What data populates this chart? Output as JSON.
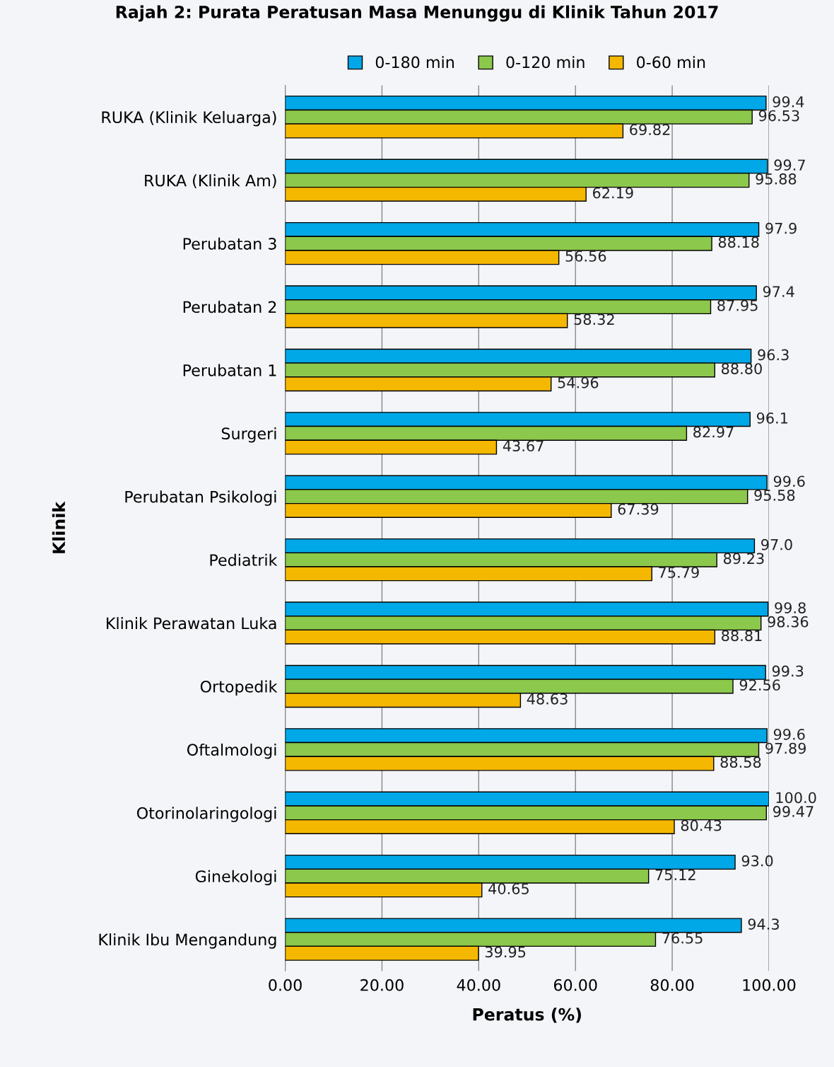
{
  "chart_data": {
    "type": "bar",
    "orientation": "horizontal",
    "title": "Rajah 2: Purata Peratusan Masa Menunggu di Klinik Tahun 2017",
    "xlabel": "Peratus (%)",
    "ylabel": "Klinik",
    "categories": [
      "RUKA (Klinik Keluarga)",
      "RUKA (Klinik Am)",
      "Perubatan 3",
      "Perubatan 2",
      "Perubatan 1",
      "Surgeri",
      "Perubatan Psikologi",
      "Pediatrik",
      "Klinik Perawatan Luka",
      "Ortopedik",
      "Oftalmologi",
      "Otorinolaringologi",
      "Ginekologi",
      "Klinik Ibu Mengandung"
    ],
    "series": [
      {
        "name": "0-180 min",
        "color": "#00a8e8",
        "values": [
          99.4,
          99.7,
          97.9,
          97.4,
          96.3,
          96.1,
          99.6,
          97.0,
          99.8,
          99.3,
          99.6,
          100.0,
          93.0,
          94.3
        ],
        "value_labels": [
          "99.4",
          "99.7",
          "97.9",
          "97.4",
          "96.3",
          "96.1",
          "99.6",
          "97.0",
          "99.8",
          "99.3",
          "99.6",
          "100.0",
          "93.0",
          "94.3"
        ]
      },
      {
        "name": "0-120 min",
        "color": "#8cc84b",
        "values": [
          96.53,
          95.88,
          88.18,
          87.95,
          88.8,
          82.97,
          95.58,
          89.23,
          98.36,
          92.56,
          97.89,
          99.47,
          75.12,
          76.55
        ],
        "value_labels": [
          "96.53",
          "95.88",
          "88.18",
          "87.95",
          "88.80",
          "82.97",
          "95.58",
          "89.23",
          "98.36",
          "92.56",
          "97.89",
          "99.47",
          "75.12",
          "76.55"
        ]
      },
      {
        "name": "0-60 min",
        "color": "#f5b800",
        "values": [
          69.82,
          62.19,
          56.56,
          58.32,
          54.96,
          43.67,
          67.39,
          75.79,
          88.81,
          48.63,
          88.58,
          80.43,
          40.65,
          39.95
        ],
        "value_labels": [
          "69.82",
          "62.19",
          "56.56",
          "58.32",
          "54.96",
          "43.67",
          "67.39",
          "75.79",
          "88.81",
          "48.63",
          "88.58",
          "80.43",
          "40.65",
          "39.95"
        ]
      }
    ],
    "xlim": [
      0,
      100
    ],
    "xticks": [
      {
        "value": 0,
        "label": "0.00"
      },
      {
        "value": 20,
        "label": "20.00"
      },
      {
        "value": 40,
        "label": "40.00"
      },
      {
        "value": 60,
        "label": "60.00"
      },
      {
        "value": 80,
        "label": "80.00"
      },
      {
        "value": 100,
        "label": "100.00"
      }
    ],
    "grid": "x",
    "legend": "top"
  }
}
